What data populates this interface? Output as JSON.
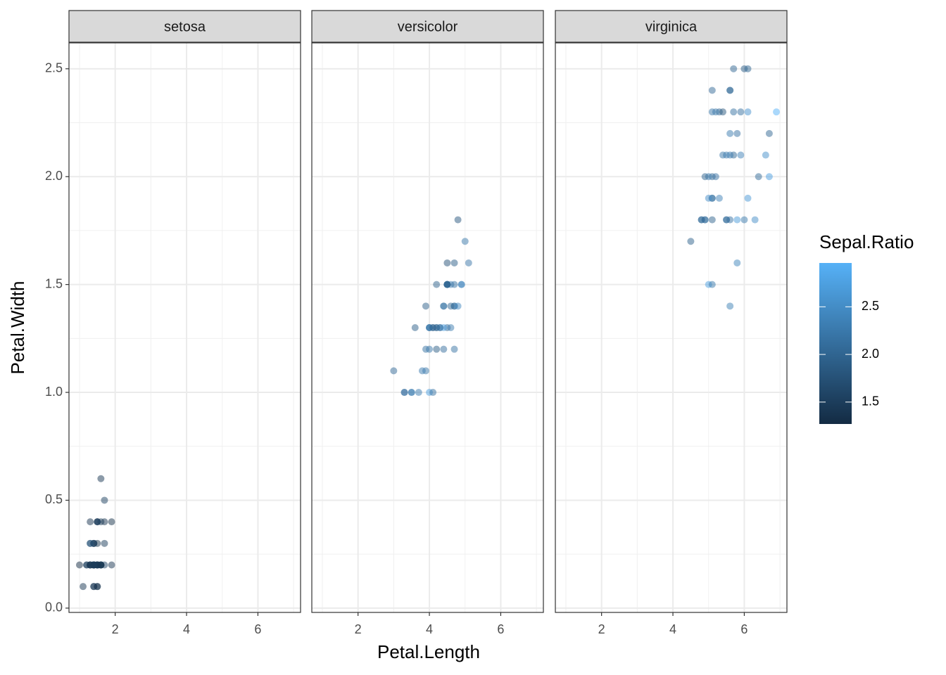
{
  "chart_data": {
    "type": "scatter",
    "xlabel": "Petal.Length",
    "ylabel": "Petal.Width",
    "xlim": [
      0.705,
      7.195
    ],
    "ylim": [
      -0.02,
      2.62
    ],
    "xticks": [
      2,
      4,
      6
    ],
    "xminor": [
      1,
      3,
      5,
      7
    ],
    "yticks": [
      {
        "value": 0,
        "label": "0.0"
      },
      0.5,
      {
        "value": 1,
        "label": "1.0"
      },
      1.5,
      {
        "value": 2,
        "label": "2.0"
      },
      2.5
    ],
    "yminor": [
      0.25,
      0.75,
      1.25,
      1.75,
      2.25
    ],
    "grid": true,
    "point_alpha": 0.5,
    "colorbar": {
      "title": "Sepal.Ratio",
      "lim": [
        1.27,
        2.96
      ],
      "low": "#132B43",
      "high": "#56B1F7",
      "ticks": [
        1.5,
        {
          "value": 2,
          "label": "2.0"
        },
        2.5
      ]
    },
    "facets": [
      {
        "title": "setosa",
        "x": [
          1.4,
          1.4,
          1.3,
          1.5,
          1.4,
          1.7,
          1.4,
          1.5,
          1.4,
          1.5,
          1.5,
          1.6,
          1.4,
          1.1,
          1.2,
          1.5,
          1.3,
          1.4,
          1.7,
          1.5,
          1.7,
          1.5,
          1.0,
          1.7,
          1.9,
          1.6,
          1.6,
          1.5,
          1.4,
          1.6,
          1.6,
          1.5,
          1.5,
          1.4,
          1.5,
          1.2,
          1.3,
          1.4,
          1.3,
          1.5,
          1.3,
          1.3,
          1.3,
          1.6,
          1.9,
          1.4,
          1.6,
          1.4,
          1.5,
          1.4
        ],
        "y": [
          0.2,
          0.2,
          0.2,
          0.2,
          0.2,
          0.4,
          0.3,
          0.2,
          0.2,
          0.1,
          0.2,
          0.2,
          0.1,
          0.1,
          0.2,
          0.4,
          0.4,
          0.3,
          0.3,
          0.3,
          0.2,
          0.4,
          0.2,
          0.5,
          0.2,
          0.2,
          0.4,
          0.2,
          0.2,
          0.2,
          0.2,
          0.4,
          0.1,
          0.2,
          0.2,
          0.2,
          0.2,
          0.1,
          0.2,
          0.2,
          0.3,
          0.3,
          0.2,
          0.6,
          0.4,
          0.3,
          0.2,
          0.2,
          0.2,
          0.2
        ],
        "color_values": [
          1.46,
          1.63,
          1.47,
          1.48,
          1.39,
          1.38,
          1.35,
          1.47,
          1.52,
          1.58,
          1.46,
          1.41,
          1.6,
          1.43,
          1.45,
          1.3,
          1.38,
          1.46,
          1.5,
          1.34,
          1.59,
          1.38,
          1.28,
          1.55,
          1.41,
          1.67,
          1.47,
          1.49,
          1.53,
          1.47,
          1.55,
          1.59,
          1.27,
          1.31,
          1.58,
          1.56,
          1.57,
          1.36,
          1.47,
          1.5,
          1.43,
          1.96,
          1.38,
          1.43,
          1.34,
          1.6,
          1.34,
          1.44,
          1.43,
          1.52
        ]
      },
      {
        "title": "versicolor",
        "x": [
          4.7,
          4.5,
          4.9,
          4.0,
          4.6,
          4.5,
          4.7,
          3.3,
          4.6,
          3.9,
          3.5,
          4.2,
          4.0,
          4.7,
          3.6,
          4.4,
          4.5,
          4.1,
          4.5,
          3.9,
          4.8,
          4.0,
          4.9,
          4.7,
          4.3,
          4.4,
          4.8,
          5.0,
          4.5,
          3.5,
          3.8,
          3.7,
          3.9,
          5.1,
          4.5,
          4.5,
          4.7,
          4.4,
          4.1,
          4.0,
          4.4,
          4.6,
          4.0,
          3.3,
          4.2,
          4.2,
          4.2,
          4.3,
          3.0,
          4.1
        ],
        "y": [
          1.4,
          1.5,
          1.5,
          1.3,
          1.5,
          1.3,
          1.6,
          1.0,
          1.3,
          1.4,
          1.0,
          1.5,
          1.0,
          1.4,
          1.3,
          1.4,
          1.5,
          1.0,
          1.5,
          1.1,
          1.8,
          1.3,
          1.5,
          1.2,
          1.3,
          1.4,
          1.4,
          1.7,
          1.5,
          1.0,
          1.1,
          1.0,
          1.2,
          1.6,
          1.5,
          1.6,
          1.5,
          1.3,
          1.3,
          1.3,
          1.2,
          1.4,
          1.2,
          1.0,
          1.3,
          1.2,
          1.3,
          1.3,
          1.1,
          1.3
        ],
        "color_values": [
          2.19,
          2.0,
          2.23,
          2.39,
          2.32,
          2.04,
          1.91,
          2.04,
          2.28,
          1.93,
          2.5,
          1.97,
          2.73,
          2.1,
          1.93,
          2.16,
          1.87,
          2.15,
          2.82,
          2.24,
          1.84,
          2.18,
          2.52,
          2.18,
          2.21,
          2.2,
          2.43,
          2.23,
          2.07,
          2.19,
          2.29,
          2.29,
          2.15,
          2.22,
          1.8,
          1.76,
          2.16,
          2.74,
          1.87,
          2.2,
          2.12,
          2.03,
          2.23,
          2.17,
          2.07,
          1.9,
          1.97,
          2.14,
          2.04,
          2.04
        ]
      },
      {
        "title": "virginica",
        "x": [
          6.0,
          5.1,
          5.9,
          5.6,
          5.8,
          6.6,
          4.5,
          6.3,
          5.8,
          6.1,
          5.1,
          5.3,
          5.5,
          5.0,
          5.1,
          5.3,
          5.5,
          6.7,
          6.9,
          5.0,
          5.7,
          4.9,
          6.7,
          4.9,
          5.7,
          6.0,
          4.8,
          4.9,
          5.6,
          5.8,
          6.1,
          6.4,
          5.6,
          5.1,
          5.6,
          6.1,
          5.6,
          5.5,
          4.8,
          5.4,
          5.6,
          5.1,
          5.1,
          5.9,
          5.7,
          5.2,
          5.0,
          5.2,
          5.4,
          5.1
        ],
        "y": [
          2.5,
          1.9,
          2.1,
          1.8,
          2.2,
          2.1,
          1.7,
          1.8,
          1.8,
          2.5,
          2.0,
          1.9,
          2.1,
          2.0,
          2.4,
          2.3,
          1.8,
          2.2,
          2.3,
          1.5,
          2.3,
          2.0,
          2.0,
          1.8,
          2.1,
          1.8,
          1.8,
          1.8,
          2.1,
          1.6,
          1.9,
          2.0,
          2.2,
          1.5,
          1.4,
          2.3,
          2.4,
          1.8,
          1.8,
          2.1,
          2.4,
          2.3,
          1.9,
          2.3,
          2.5,
          2.3,
          1.9,
          2.0,
          2.3,
          1.8
        ],
        "color_values": [
          1.91,
          2.15,
          2.37,
          2.17,
          2.17,
          2.53,
          1.96,
          2.52,
          2.68,
          2.0,
          2.03,
          2.37,
          2.27,
          2.28,
          2.07,
          2.0,
          2.17,
          2.03,
          2.96,
          2.73,
          2.16,
          2.0,
          2.75,
          2.33,
          2.03,
          2.25,
          2.21,
          2.03,
          2.29,
          2.4,
          2.64,
          2.08,
          2.29,
          2.25,
          2.35,
          2.57,
          1.85,
          2.06,
          2.0,
          2.23,
          2.16,
          2.23,
          2.15,
          2.13,
          2.03,
          2.23,
          2.52,
          2.17,
          1.82,
          1.97
        ]
      }
    ]
  }
}
